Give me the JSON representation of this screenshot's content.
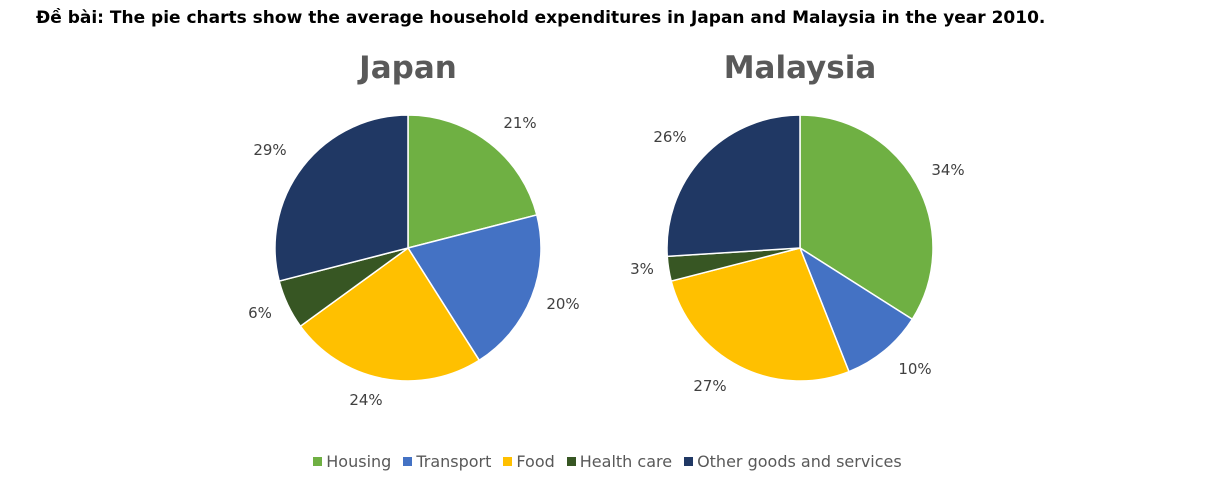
{
  "page": {
    "heading": "Đề bài: The pie charts show the average household expenditures in Japan and Malaysia in the year 2010."
  },
  "colors": {
    "Housing": "#6fb043",
    "Transport": "#4472c4",
    "Food": "#ffc000",
    "Health care": "#375623",
    "Other goods and services": "#203864"
  },
  "legend": [
    "Housing",
    "Transport",
    "Food",
    "Health care",
    "Other goods and services"
  ],
  "chart_data": [
    {
      "type": "pie",
      "title": "Japan",
      "categories": [
        "Housing",
        "Transport",
        "Food",
        "Health care",
        "Other goods and services"
      ],
      "values": [
        21,
        20,
        24,
        6,
        29
      ],
      "labels": [
        "21%",
        "20%",
        "24%",
        "6%",
        "29%"
      ]
    },
    {
      "type": "pie",
      "title": "Malaysia",
      "categories": [
        "Housing",
        "Transport",
        "Food",
        "Health care",
        "Other goods and services"
      ],
      "values": [
        34,
        10,
        27,
        3,
        26
      ],
      "labels": [
        "34%",
        "10%",
        "27%",
        "3%",
        "26%"
      ]
    }
  ]
}
